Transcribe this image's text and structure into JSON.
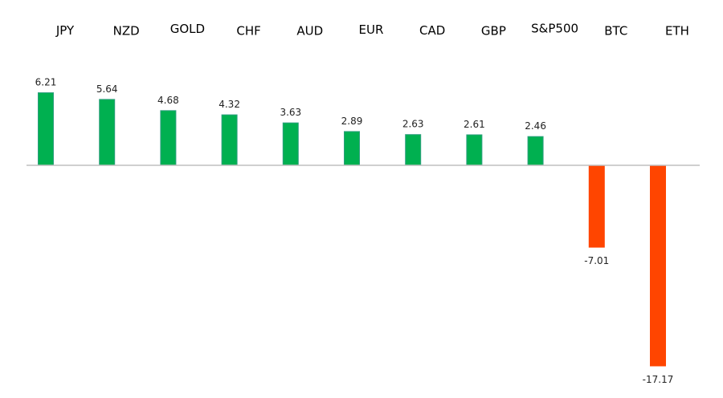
{
  "chart_data": {
    "type": "bar",
    "categories": [
      "JPY",
      "NZD",
      "GOLD",
      "CHF",
      "AUD",
      "EUR",
      "CAD",
      "GBP",
      "S&P500",
      "BTC",
      "ETH"
    ],
    "values": [
      6.21,
      5.64,
      4.68,
      4.32,
      3.63,
      2.89,
      2.63,
      2.61,
      2.46,
      -7.01,
      -17.17
    ],
    "value_labels": [
      "6.21",
      "5.64",
      "4.68",
      "4.32",
      "3.63",
      "2.89",
      "2.63",
      "2.61",
      "2.46",
      "-7.01",
      "-17.17"
    ],
    "title": "",
    "xlabel": "",
    "ylabel": "",
    "grid": false,
    "legend": "none",
    "category_labels_position": "top",
    "colors": {
      "positive": "#00b050",
      "positive_edge": "#2e9e7e",
      "negative": "#ff4500",
      "axis": "#bfbfbf"
    }
  }
}
